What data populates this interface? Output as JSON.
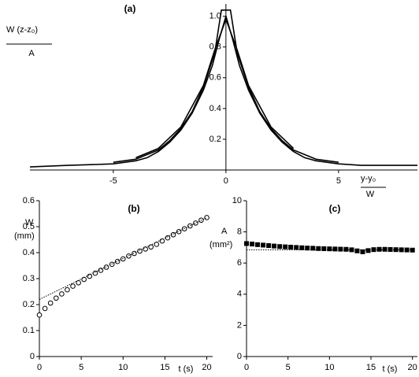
{
  "chart_data": [
    {
      "type": "line",
      "title": "(a)",
      "ylabel": {
        "numerator": "W (z-z₀)",
        "denominator": "A"
      },
      "xlabel": {
        "numerator": "y-y₀",
        "denominator": "W"
      },
      "xlim": [
        -8.7,
        8.5
      ],
      "ylim": [
        0,
        1.08
      ],
      "xticks": [
        -5,
        0,
        5
      ],
      "yticks": [
        0.2,
        0.4,
        0.6,
        0.8,
        {
          "value": 1,
          "label": "1.0"
        }
      ],
      "series": [
        {
          "color": "#000000",
          "x": [
            -8.7,
            -7,
            -6,
            -5,
            -4,
            -3.5,
            -3,
            -2.5,
            -2,
            -1.5,
            -1,
            -0.6,
            -0.3,
            0,
            0.3,
            0.6,
            1,
            1.5,
            2,
            2.5,
            3,
            3.5,
            4,
            5,
            6,
            7,
            8.5
          ],
          "values": [
            0.02,
            0.03,
            0.035,
            0.04,
            0.06,
            0.08,
            0.12,
            0.18,
            0.26,
            0.37,
            0.52,
            0.68,
            0.85,
            1.0,
            0.85,
            0.68,
            0.52,
            0.37,
            0.26,
            0.18,
            0.12,
            0.08,
            0.06,
            0.04,
            0.03,
            0.03,
            0.03
          ]
        },
        {
          "color": "#000000",
          "x": [
            -5,
            -4,
            -3,
            -2.5,
            -2,
            -1.5,
            -1,
            -0.5,
            -0.2,
            0,
            0.2,
            0.5,
            1,
            1.5,
            2,
            2.5,
            3,
            4,
            5
          ],
          "values": [
            0.05,
            0.07,
            0.13,
            0.19,
            0.27,
            0.38,
            0.54,
            0.76,
            1.04,
            1.04,
            1.04,
            0.76,
            0.54,
            0.38,
            0.27,
            0.19,
            0.13,
            0.07,
            0.05
          ]
        },
        {
          "color": "#000000",
          "x": [
            -4,
            -3,
            -2,
            -1,
            -0.5,
            0,
            0.5,
            1,
            2,
            3
          ],
          "values": [
            0.08,
            0.14,
            0.28,
            0.55,
            0.78,
            0.98,
            0.78,
            0.55,
            0.28,
            0.14
          ]
        }
      ]
    },
    {
      "type": "scatter",
      "title": "(b)",
      "ylabel": [
        "W",
        "(mm)"
      ],
      "xlabel": "t (s)",
      "xlim": [
        0,
        20.7
      ],
      "ylim": [
        0,
        0.6
      ],
      "xticks": [
        0,
        5,
        10,
        15,
        20
      ],
      "yticks": [
        0,
        0.1,
        0.2,
        0.3,
        0.4,
        0.5,
        0.6
      ],
      "series": [
        {
          "color": "#000000",
          "marker": "circle",
          "x": [
            0,
            0.67,
            1.33,
            2,
            2.67,
            3.33,
            4,
            4.67,
            5.33,
            6,
            6.67,
            7.33,
            8,
            8.67,
            9.33,
            10,
            10.67,
            11.33,
            12,
            12.67,
            13.33,
            14,
            14.67,
            15.33,
            16,
            16.67,
            17.33,
            18,
            18.67,
            19.33,
            20
          ],
          "values": [
            0.16,
            0.185,
            0.206,
            0.225,
            0.241,
            0.257,
            0.271,
            0.284,
            0.297,
            0.309,
            0.321,
            0.332,
            0.344,
            0.355,
            0.366,
            0.376,
            0.387,
            0.397,
            0.406,
            0.414,
            0.422,
            0.432,
            0.445,
            0.457,
            0.469,
            0.481,
            0.492,
            0.503,
            0.514,
            0.525,
            0.535
          ]
        },
        {
          "color": "#000000",
          "marker": "dotted",
          "x": [
            0,
            20
          ],
          "values": [
            0.22,
            0.535
          ]
        }
      ]
    },
    {
      "type": "scatter",
      "title": "(c)",
      "ylabel": [
        "A",
        "(mm²)"
      ],
      "xlabel": "t (s)",
      "xlim": [
        0,
        20.6
      ],
      "ylim": [
        0,
        10
      ],
      "xticks": [
        0,
        5,
        10,
        15,
        20
      ],
      "yticks": [
        0,
        2,
        4,
        6,
        8,
        10
      ],
      "series": [
        {
          "color": "#000000",
          "marker": "square",
          "x": [
            0,
            0.67,
            1.33,
            2,
            2.67,
            3.33,
            4,
            4.67,
            5.33,
            6,
            6.67,
            7.33,
            8,
            8.67,
            9.33,
            10,
            10.67,
            11.33,
            12,
            12.67,
            13.33,
            14,
            14.67,
            15.33,
            16,
            16.67,
            17.33,
            18,
            18.67,
            19.33,
            20
          ],
          "values": [
            7.25,
            7.22,
            7.18,
            7.15,
            7.12,
            7.09,
            7.06,
            7.04,
            7.02,
            7.0,
            6.98,
            6.96,
            6.95,
            6.93,
            6.92,
            6.91,
            6.9,
            6.89,
            6.88,
            6.85,
            6.78,
            6.72,
            6.8,
            6.86,
            6.88,
            6.88,
            6.87,
            6.86,
            6.85,
            6.84,
            6.83
          ]
        },
        {
          "color": "#000000",
          "marker": "dotted",
          "x": [
            0,
            20
          ],
          "values": [
            6.85,
            6.85
          ]
        }
      ]
    }
  ]
}
